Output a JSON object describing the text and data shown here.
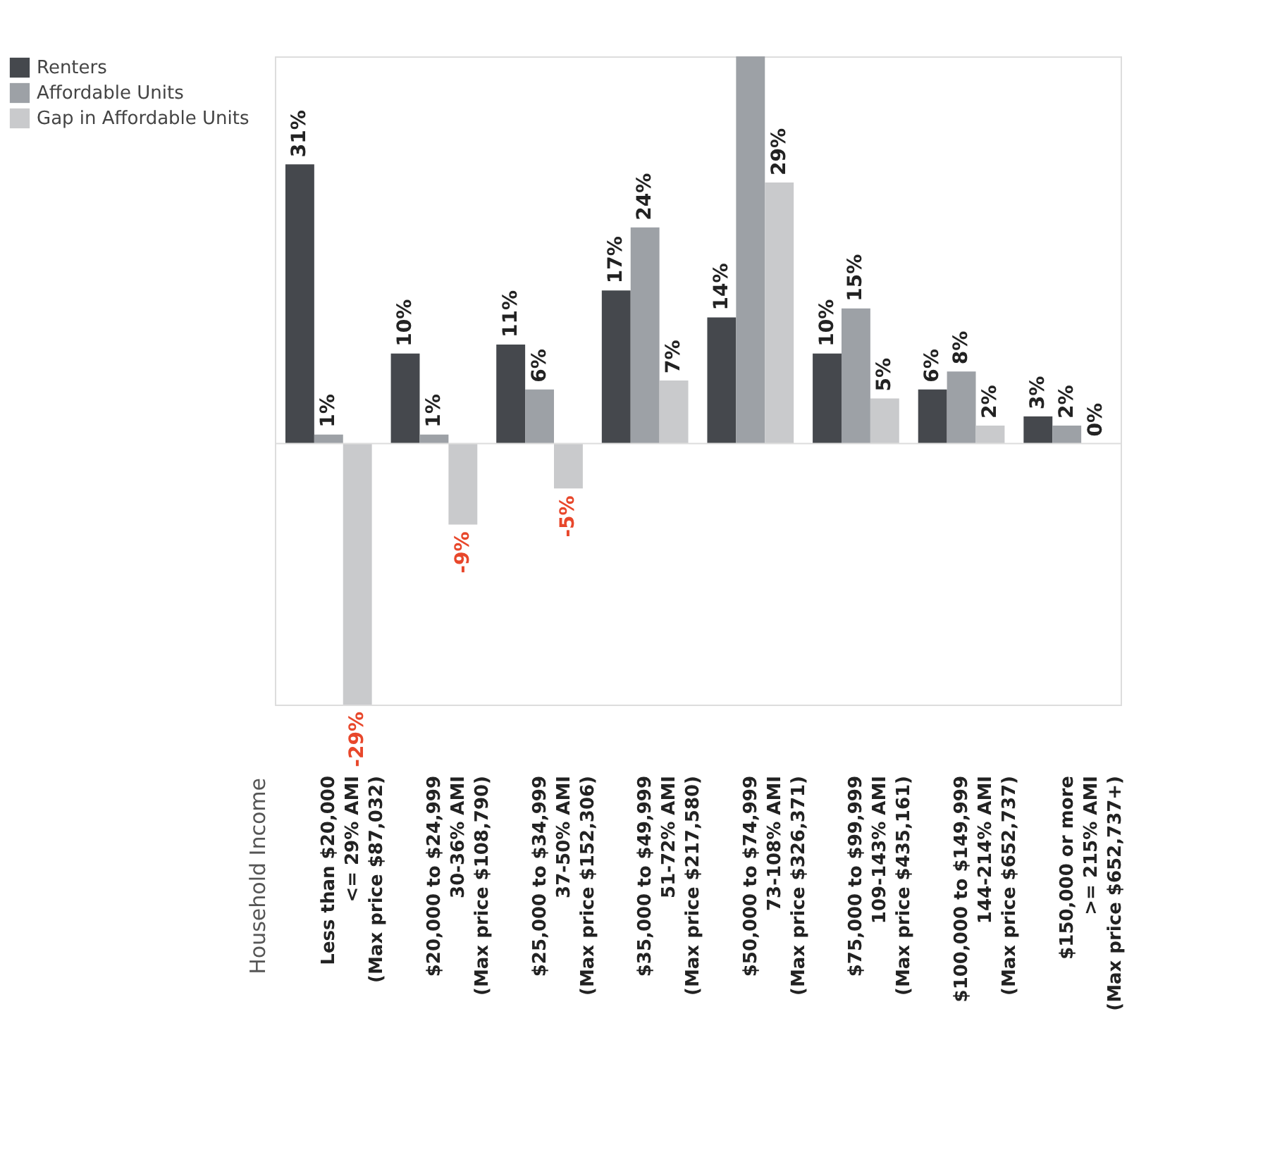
{
  "chart_data": {
    "type": "bar",
    "annotations": [
      "Household Income"
    ],
    "legend": "left",
    "categories": [
      "Less than $20,000\n<= 29% AMI\n(Max price $87,032)",
      "$20,000 to $24,999\n30-36% AMI\n(Max price $108,790)",
      "$25,000 to $34,999\n37-50% AMI\n(Max price $152,306)",
      "$35,000 to $49,999\n51-72% AMI\n(Max price $217,580)",
      "$50,000 to $74,999\n73-108% AMI\n(Max price $326,371)",
      "$75,000 to $99,999\n109-143% AMI\n(Max price $435,161)",
      "$100,000 to $149,999\n144-214% AMI\n(Max price $652,737)",
      "$150,000 or more\n>= 215% AMI\n(Max price $652,737+)"
    ],
    "series": [
      {
        "name": "Renters",
        "color": "#45484d",
        "values": [
          31,
          10,
          11,
          17,
          14,
          10,
          6,
          3
        ],
        "value_labels": [
          "31%",
          "10%",
          "11%",
          "17%",
          "14%",
          "10%",
          "6%",
          "3%"
        ]
      },
      {
        "name": "Affordable Units",
        "color": "#9da1a6",
        "values": [
          1,
          1,
          6,
          24,
          43,
          15,
          8,
          2
        ],
        "value_labels": [
          "1%",
          "1%",
          "6%",
          "24%",
          null,
          "15%",
          "8%",
          "2%"
        ]
      },
      {
        "name": "Gap in Affordable Units",
        "color": "#c9cacc",
        "values": [
          -29,
          -9,
          -5,
          7,
          29,
          5,
          2,
          0
        ],
        "value_labels": [
          "-29%",
          "-9%",
          "-5%",
          "7%",
          "29%",
          "5%",
          "2%",
          "0%"
        ]
      }
    ]
  }
}
